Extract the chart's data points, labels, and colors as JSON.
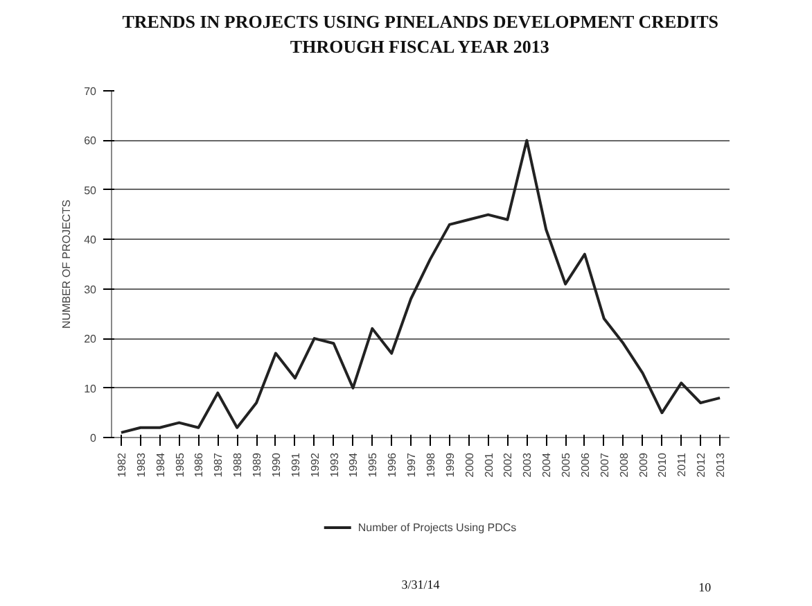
{
  "chart_data": {
    "type": "line",
    "title": "TRENDS IN PROJECTS USING PINELANDS DEVELOPMENT CREDITS\nTHROUGH FISCAL YEAR 2013",
    "ylabel": "NUMBER OF PROJECTS",
    "categories": [
      "1982",
      "1983",
      "1984",
      "1985",
      "1986",
      "1987",
      "1988",
      "1989",
      "1990",
      "1991",
      "1992",
      "1993",
      "1994",
      "1995",
      "1996",
      "1997",
      "1998",
      "1999",
      "2000",
      "2001",
      "2002",
      "2003",
      "2004",
      "2005",
      "2006",
      "2007",
      "2008",
      "2009",
      "2010",
      "2011",
      "2012",
      "2013"
    ],
    "series": [
      {
        "name": "Number of Projects Using PDCs",
        "color": "#222222",
        "values": [
          1,
          2,
          2,
          3,
          2,
          9,
          2,
          7,
          17,
          12,
          20,
          19,
          10,
          22,
          17,
          28,
          36,
          43,
          44,
          45,
          44,
          60,
          42,
          31,
          37,
          24,
          19,
          13,
          5,
          11,
          7,
          8
        ]
      }
    ],
    "ylim": [
      0,
      70
    ],
    "yticks": [
      0,
      10,
      20,
      30,
      40,
      50,
      60,
      70
    ],
    "grid": "y",
    "legend": "bottom",
    "marker": "none",
    "line_style": "solid",
    "annotations": [
      "3/31/14",
      "10"
    ]
  }
}
